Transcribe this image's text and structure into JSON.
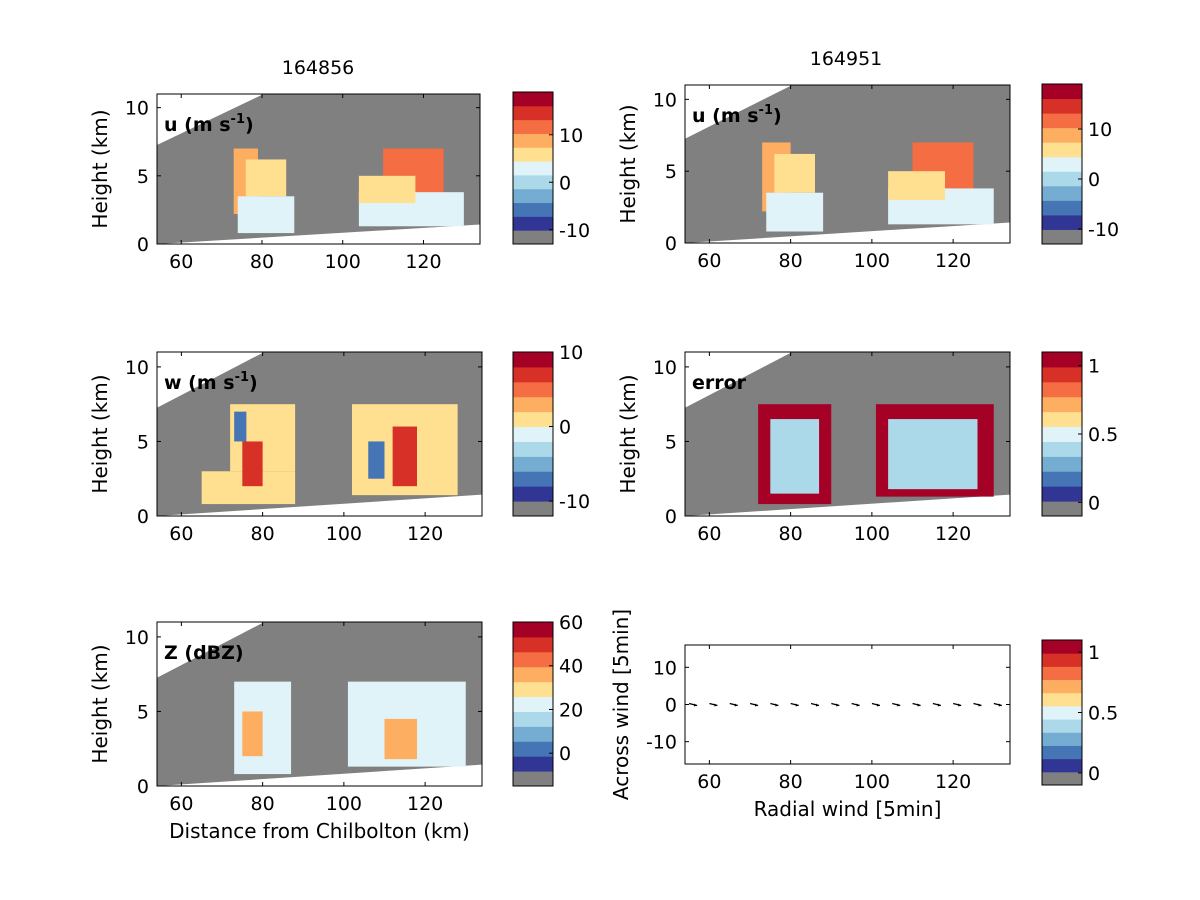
{
  "figure": {
    "titles": [
      "164856",
      "164951"
    ],
    "panel_labels": {
      "u_left": [
        "u (m s",
        "-1",
        ")"
      ],
      "u_right": [
        "u (m s",
        "-1",
        ")"
      ],
      "w_left": [
        "w (m s",
        "-1",
        ")"
      ],
      "error_right": [
        "error"
      ],
      "z_left": [
        "Z (dBZ)"
      ]
    }
  },
  "chart_data": [
    {
      "id": "u_left",
      "type": "heatmap",
      "title": "164856",
      "xlabel": "",
      "ylabel": "Height (km)",
      "xlim": [
        54,
        134
      ],
      "ylim": [
        0,
        11
      ],
      "xticks": [
        60,
        80,
        100,
        120
      ],
      "yticks": [
        0,
        5,
        10
      ],
      "colorbar": {
        "ticks": [
          10,
          0,
          -10
        ],
        "tick_labels": [
          "10",
          "0",
          "-10"
        ],
        "range": [
          -13,
          19
        ]
      },
      "cells": [
        {
          "x": [
            73,
            79
          ],
          "y": [
            2.2,
            7.0
          ],
          "v": 9
        },
        {
          "x": [
            76,
            86
          ],
          "y": [
            3.5,
            6.2
          ],
          "v": 6
        },
        {
          "x": [
            74,
            88
          ],
          "y": [
            0.8,
            3.5
          ],
          "v": 1
        },
        {
          "x": [
            110,
            125
          ],
          "y": [
            3.5,
            7.0
          ],
          "v": 10
        },
        {
          "x": [
            104,
            130
          ],
          "y": [
            1.3,
            3.8
          ],
          "v": 1
        },
        {
          "x": [
            104,
            118
          ],
          "y": [
            3.0,
            5.0
          ],
          "v": 6
        }
      ]
    },
    {
      "id": "u_right",
      "type": "heatmap",
      "title": "164951",
      "xlabel": "",
      "ylabel": "Height (km)",
      "xlim": [
        54,
        134
      ],
      "ylim": [
        0,
        11
      ],
      "xticks": [
        60,
        80,
        100,
        120
      ],
      "yticks": [
        0,
        5,
        10
      ],
      "colorbar": {
        "ticks": [
          10,
          0,
          -10
        ],
        "tick_labels": [
          "10",
          "0",
          "-10"
        ],
        "range": [
          -13,
          19
        ]
      },
      "cells": [
        {
          "x": [
            73,
            80
          ],
          "y": [
            2.2,
            7.0
          ],
          "v": 9
        },
        {
          "x": [
            76,
            86
          ],
          "y": [
            3.5,
            6.2
          ],
          "v": 6
        },
        {
          "x": [
            74,
            88
          ],
          "y": [
            0.8,
            3.5
          ],
          "v": 1
        },
        {
          "x": [
            110,
            125
          ],
          "y": [
            3.5,
            7.0
          ],
          "v": 10
        },
        {
          "x": [
            104,
            130
          ],
          "y": [
            1.3,
            3.8
          ],
          "v": 1
        },
        {
          "x": [
            104,
            118
          ],
          "y": [
            3.0,
            5.0
          ],
          "v": 6
        }
      ]
    },
    {
      "id": "w_left",
      "type": "heatmap",
      "title": "",
      "xlabel": "",
      "ylabel": "Height (km)",
      "xlim": [
        54,
        134
      ],
      "ylim": [
        0,
        11
      ],
      "xticks": [
        60,
        80,
        100,
        120
      ],
      "yticks": [
        0,
        5,
        10
      ],
      "colorbar": {
        "ticks": [
          10,
          0,
          -10
        ],
        "tick_labels": [
          "10",
          "0",
          "-10"
        ],
        "range": [
          -12,
          10
        ]
      },
      "cells": [
        {
          "x": [
            72,
            88
          ],
          "y": [
            3.0,
            7.5
          ],
          "v": 1
        },
        {
          "x": [
            65,
            88
          ],
          "y": [
            0.8,
            3.0
          ],
          "v": 1
        },
        {
          "x": [
            75,
            80
          ],
          "y": [
            2.0,
            5.0
          ],
          "v": 7
        },
        {
          "x": [
            73,
            76
          ],
          "y": [
            5.0,
            7.0
          ],
          "v": -9
        },
        {
          "x": [
            102,
            128
          ],
          "y": [
            1.4,
            7.5
          ],
          "v": 1
        },
        {
          "x": [
            112,
            118
          ],
          "y": [
            2.0,
            6.0
          ],
          "v": 7
        },
        {
          "x": [
            106,
            110
          ],
          "y": [
            2.5,
            5.0
          ],
          "v": -8
        }
      ]
    },
    {
      "id": "error_right",
      "type": "heatmap",
      "title": "",
      "xlabel": "",
      "ylabel": "Height (km)",
      "xlim": [
        54,
        134
      ],
      "ylim": [
        0,
        11
      ],
      "xticks": [
        60,
        80,
        100,
        120
      ],
      "yticks": [
        0,
        5,
        10
      ],
      "colorbar": {
        "ticks": [
          1,
          0.5,
          0
        ],
        "tick_labels": [
          "1",
          "0.5",
          "0"
        ],
        "range": [
          -0.1,
          1.1
        ]
      },
      "cells": [
        {
          "x": [
            72,
            90
          ],
          "y": [
            0.8,
            7.5
          ],
          "v": 1.0
        },
        {
          "x": [
            75,
            87
          ],
          "y": [
            1.5,
            6.5
          ],
          "v": 0.3
        },
        {
          "x": [
            101,
            130
          ],
          "y": [
            1.3,
            7.5
          ],
          "v": 1.0
        },
        {
          "x": [
            104,
            126
          ],
          "y": [
            1.8,
            6.5
          ],
          "v": 0.3
        }
      ]
    },
    {
      "id": "z_left",
      "type": "heatmap",
      "title": "",
      "xlabel": "Distance from Chilbolton (km)",
      "ylabel": "Height (km)",
      "xlim": [
        54,
        134
      ],
      "ylim": [
        0,
        11
      ],
      "xticks": [
        60,
        80,
        100,
        120
      ],
      "yticks": [
        0,
        5,
        10
      ],
      "colorbar": {
        "ticks": [
          60,
          40,
          20,
          0
        ],
        "tick_labels": [
          "60",
          "40",
          "20",
          "0"
        ],
        "range": [
          -15,
          60
        ]
      },
      "cells": [
        {
          "x": [
            73,
            87
          ],
          "y": [
            0.8,
            7.0
          ],
          "v": 22
        },
        {
          "x": [
            75,
            80
          ],
          "y": [
            2.0,
            5.0
          ],
          "v": 32
        },
        {
          "x": [
            101,
            130
          ],
          "y": [
            1.3,
            7.0
          ],
          "v": 20
        },
        {
          "x": [
            110,
            118
          ],
          "y": [
            1.8,
            4.5
          ],
          "v": 33
        }
      ]
    },
    {
      "id": "wind_right",
      "type": "scatter",
      "title": "",
      "xlabel": "Radial wind [5min]",
      "ylabel": "Across wind [5min]",
      "xlim": [
        54,
        134
      ],
      "ylim": [
        -16,
        16
      ],
      "xticks": [
        60,
        80,
        100,
        120
      ],
      "yticks": [
        10,
        0,
        -10
      ],
      "colorbar": {
        "ticks": [
          1,
          0.5,
          0
        ],
        "tick_labels": [
          "1",
          "0.5",
          "0"
        ],
        "range": [
          -0.1,
          1.1
        ]
      },
      "x": [
        56,
        61,
        66,
        71,
        76,
        81,
        86,
        91,
        96,
        101,
        106,
        111,
        116,
        121,
        126,
        131
      ],
      "y": [
        0,
        0,
        0,
        0,
        0,
        0,
        0,
        0,
        0,
        0,
        0,
        0,
        0,
        0,
        0,
        0
      ]
    }
  ],
  "colors": {
    "palette": [
      "#313695",
      "#4575b4",
      "#74add1",
      "#abd9e9",
      "#e0f3f8",
      "#fee090",
      "#fdae61",
      "#f46d43",
      "#d73027",
      "#a50026"
    ],
    "masked": "#808080"
  }
}
